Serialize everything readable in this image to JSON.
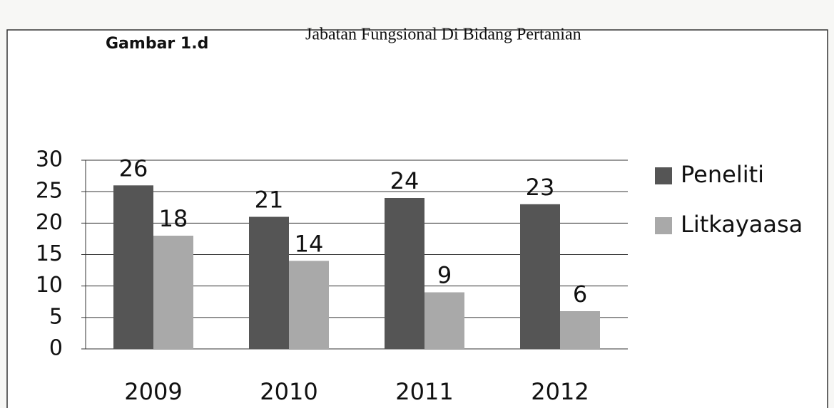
{
  "chart_data": {
    "type": "bar",
    "figure_label": "Gambar 1.d",
    "title": "Jabatan Fungsional Di Bidang Pertanian",
    "categories": [
      "2009",
      "2010",
      "2011",
      "2012"
    ],
    "series": [
      {
        "name": "Peneliti",
        "color": "#555555",
        "values": [
          26,
          21,
          24,
          23
        ]
      },
      {
        "name": "Litkayaasa",
        "color": "#a9a9a9",
        "values": [
          18,
          14,
          9,
          6
        ]
      }
    ],
    "ylim": [
      0,
      30
    ],
    "yticks": [
      0,
      5,
      10,
      15,
      20,
      25,
      30
    ],
    "grid": true,
    "legend": "right"
  }
}
